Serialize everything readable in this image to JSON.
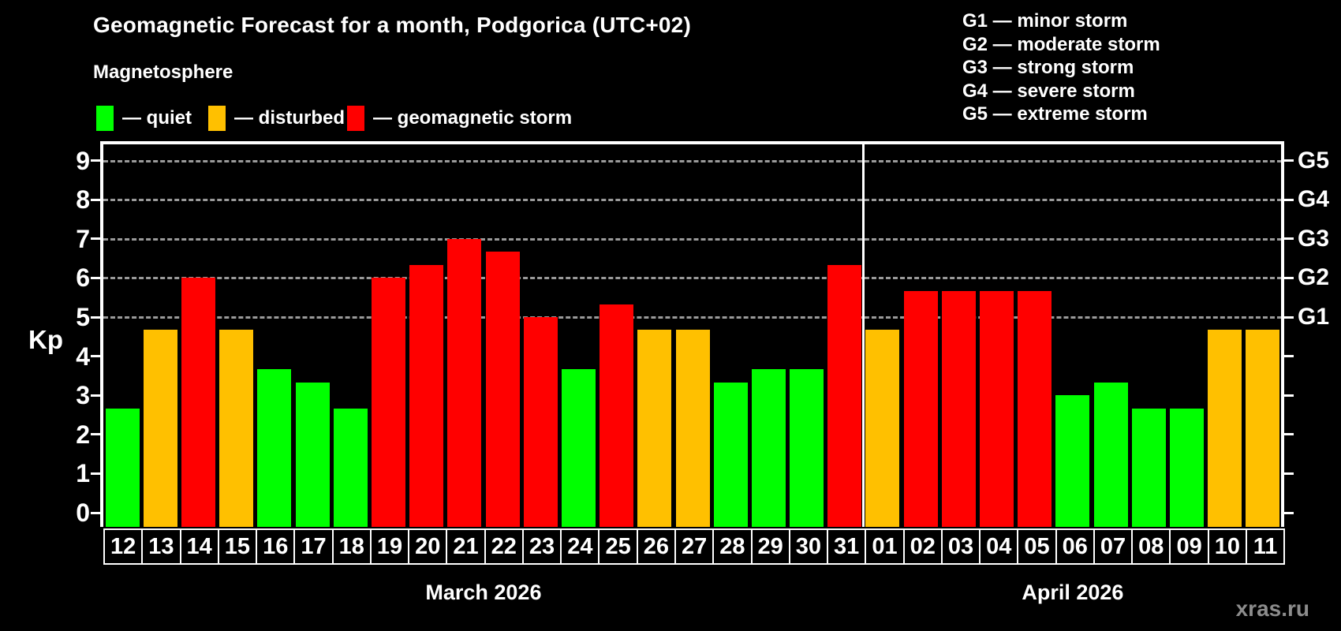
{
  "title": "Geomagnetic Forecast for a month, Podgorica (UTC+02)",
  "subtitle": "Magnetosphere",
  "legend": {
    "items": [
      {
        "key": "quiet",
        "label": "— quiet",
        "color": "#00ff00"
      },
      {
        "key": "disturbed",
        "label": "— disturbed",
        "color": "#ffc000"
      },
      {
        "key": "storm",
        "label": "— geomagnetic storm",
        "color": "#ff0000"
      }
    ]
  },
  "storm_scale_legend": {
    "lines": [
      "G1 — minor storm",
      "G2 — moderate storm",
      "G3 — strong storm",
      "G4 — severe storm",
      "G5 — extreme storm"
    ]
  },
  "watermark": "xras.ru",
  "chart_data": {
    "type": "bar",
    "ylabel": "Kp",
    "ylim": [
      0,
      9.4
    ],
    "yticks": [
      0,
      1,
      2,
      3,
      4,
      5,
      6,
      7,
      8,
      9
    ],
    "grid_kp_levels": [
      5,
      6,
      7,
      8,
      9
    ],
    "right_axis": [
      {
        "kp": 5,
        "label": "G1"
      },
      {
        "kp": 6,
        "label": "G2"
      },
      {
        "kp": 7,
        "label": "G3"
      },
      {
        "kp": 8,
        "label": "G4"
      },
      {
        "kp": 9,
        "label": "G5"
      }
    ],
    "grid": "dashed horizontal at G1–G5 levels only",
    "legend_position": "above chart (status colors) and top-right (G scale)",
    "months": [
      {
        "label": "March 2026",
        "days": [
          "12",
          "13",
          "14",
          "15",
          "16",
          "17",
          "18",
          "19",
          "20",
          "21",
          "22",
          "23",
          "24",
          "25",
          "26",
          "27",
          "28",
          "29",
          "30",
          "31"
        ]
      },
      {
        "label": "April 2026",
        "days": [
          "01",
          "02",
          "03",
          "04",
          "05",
          "06",
          "07",
          "08",
          "09",
          "10",
          "11"
        ]
      }
    ],
    "values": [
      {
        "date": "12",
        "kp": 2.67,
        "status": "quiet"
      },
      {
        "date": "13",
        "kp": 4.67,
        "status": "disturbed"
      },
      {
        "date": "14",
        "kp": 6.0,
        "status": "storm"
      },
      {
        "date": "15",
        "kp": 4.67,
        "status": "disturbed"
      },
      {
        "date": "16",
        "kp": 3.67,
        "status": "quiet"
      },
      {
        "date": "17",
        "kp": 3.33,
        "status": "quiet"
      },
      {
        "date": "18",
        "kp": 2.67,
        "status": "quiet"
      },
      {
        "date": "19",
        "kp": 6.0,
        "status": "storm"
      },
      {
        "date": "20",
        "kp": 6.33,
        "status": "storm"
      },
      {
        "date": "21",
        "kp": 7.0,
        "status": "storm"
      },
      {
        "date": "22",
        "kp": 6.67,
        "status": "storm"
      },
      {
        "date": "23",
        "kp": 5.0,
        "status": "storm"
      },
      {
        "date": "24",
        "kp": 3.67,
        "status": "quiet"
      },
      {
        "date": "25",
        "kp": 5.33,
        "status": "storm"
      },
      {
        "date": "26",
        "kp": 4.67,
        "status": "disturbed"
      },
      {
        "date": "27",
        "kp": 4.67,
        "status": "disturbed"
      },
      {
        "date": "28",
        "kp": 3.33,
        "status": "quiet"
      },
      {
        "date": "29",
        "kp": 3.67,
        "status": "quiet"
      },
      {
        "date": "30",
        "kp": 3.67,
        "status": "quiet"
      },
      {
        "date": "31",
        "kp": 6.33,
        "status": "storm"
      },
      {
        "date": "01",
        "kp": 4.67,
        "status": "disturbed"
      },
      {
        "date": "02",
        "kp": 5.67,
        "status": "storm"
      },
      {
        "date": "03",
        "kp": 5.67,
        "status": "storm"
      },
      {
        "date": "04",
        "kp": 5.67,
        "status": "storm"
      },
      {
        "date": "05",
        "kp": 5.67,
        "status": "storm"
      },
      {
        "date": "06",
        "kp": 3.0,
        "status": "quiet"
      },
      {
        "date": "07",
        "kp": 3.33,
        "status": "quiet"
      },
      {
        "date": "08",
        "kp": 2.67,
        "status": "quiet"
      },
      {
        "date": "09",
        "kp": 2.67,
        "status": "quiet"
      },
      {
        "date": "10",
        "kp": 4.67,
        "status": "disturbed"
      },
      {
        "date": "11",
        "kp": 4.67,
        "status": "disturbed"
      }
    ]
  }
}
